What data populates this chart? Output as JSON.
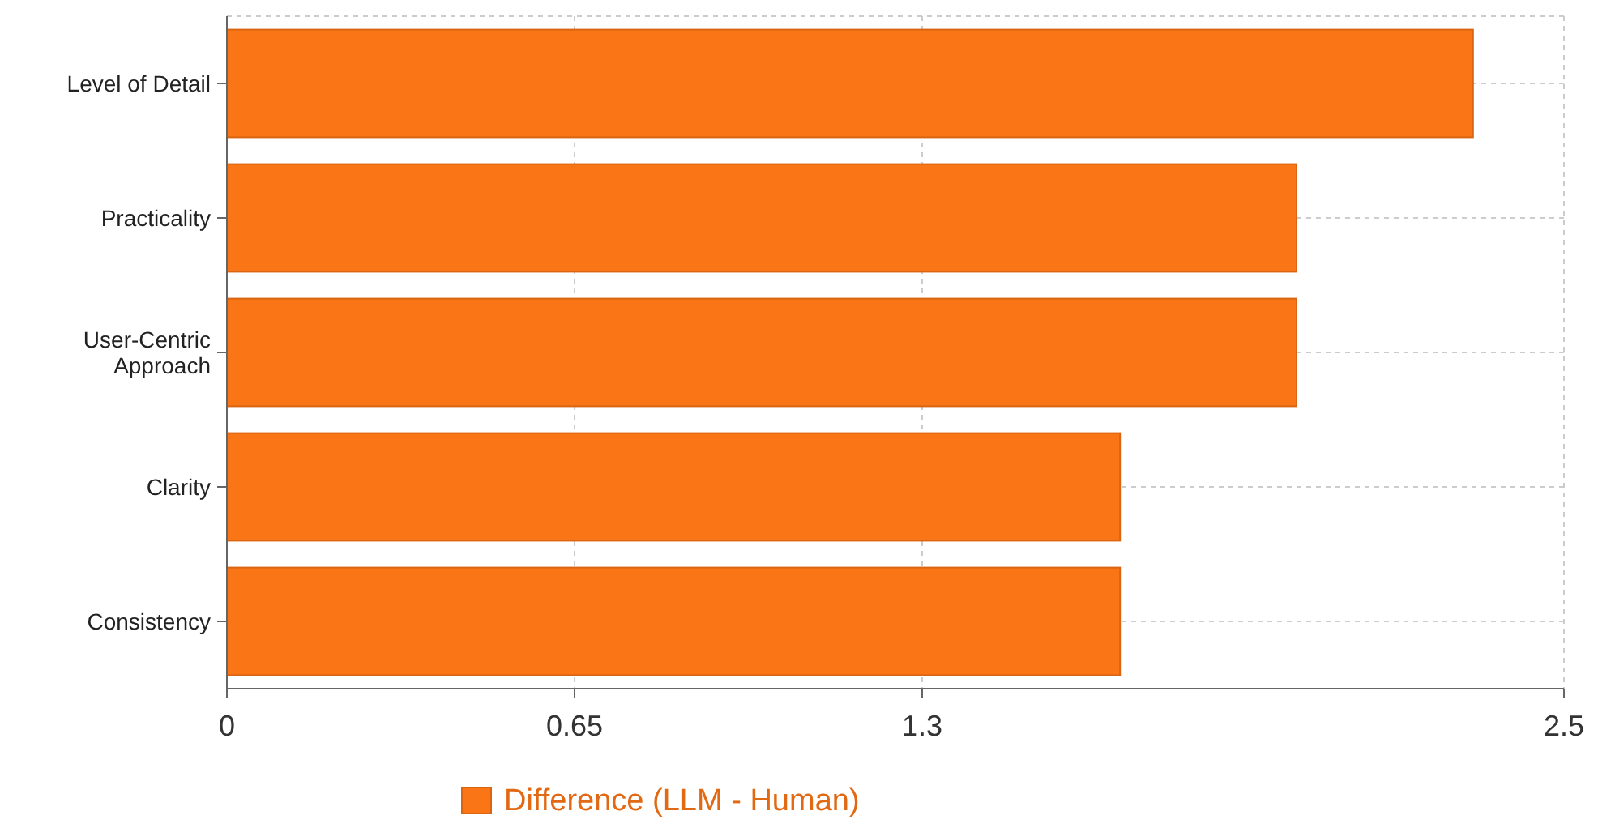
{
  "chart_data": {
    "type": "bar",
    "orientation": "horizontal",
    "categories": [
      "Level of Detail",
      "Practicality",
      "User-Centric Approach",
      "Clarity",
      "Consistency"
    ],
    "series": [
      {
        "name": "Difference (LLM - Human)",
        "color": "#fa7515",
        "values": [
          2.33,
          2.0,
          2.0,
          1.67,
          1.67
        ]
      }
    ],
    "xlim": [
      0,
      2.5
    ],
    "xticks": [
      0,
      0.65,
      1.3,
      2.5
    ],
    "grid": true,
    "legend": "bottom"
  }
}
